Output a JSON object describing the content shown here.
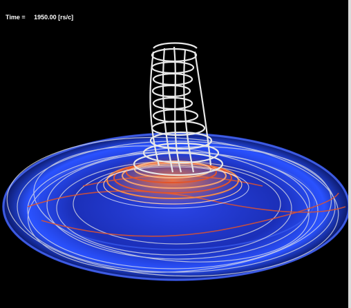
{
  "overlay": {
    "time_label": "Time =     1950.00 [rs/c]"
  },
  "scene": {
    "background_color": "#000000",
    "disk_color": "#1f39d6",
    "disk_edge_color": "#3d63ff",
    "field_line_white": "#e8e8e8",
    "field_line_red": "#e2542b",
    "field_line_orange": "#f08a4a"
  }
}
